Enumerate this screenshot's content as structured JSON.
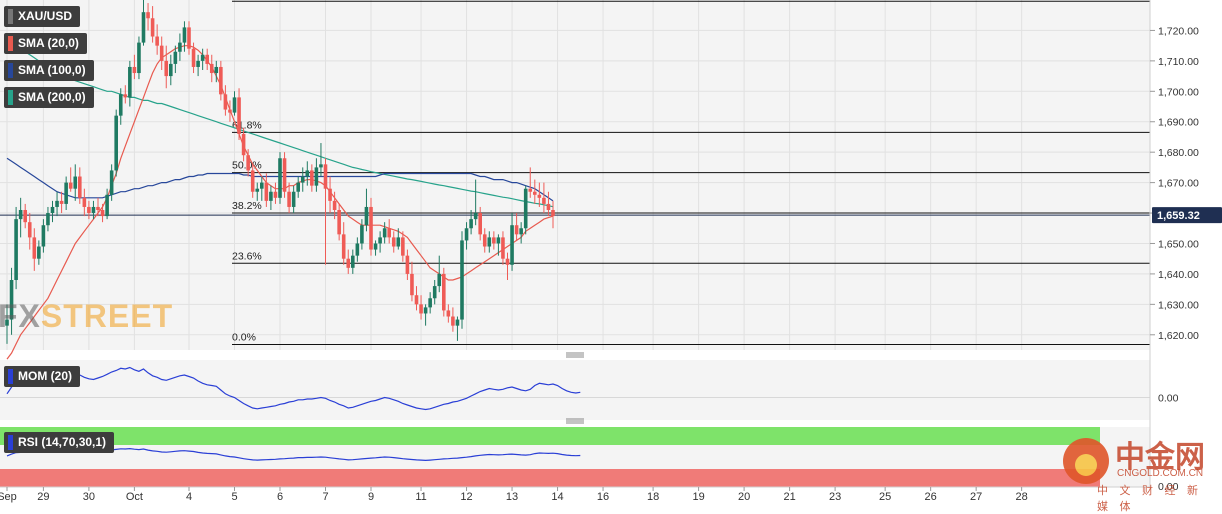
{
  "badges": {
    "symbol": "XAU/USD",
    "sma20": "SMA (20,0)",
    "sma100": "SMA (100,0)",
    "sma200": "SMA (200,0)",
    "mom": "MOM (20)",
    "rsi": "RSI (14,70,30,1)"
  },
  "colors": {
    "up": "#1f7a62",
    "down": "#ef5b56",
    "sma20": "#e85a4f",
    "sma100": "#27479a",
    "sma200": "#27a38b",
    "mom_line": "#2a3fd6",
    "rsi_upper_band": "#7ee36a",
    "rsi_lower_band": "#f07b78",
    "price_tag": "#1f2f52"
  },
  "watermark": {
    "fx": "FX",
    "street": "STREET"
  },
  "logo": {
    "cn": "中金网",
    "en": "CNGOLD.COM.CN",
    "sub": "中 文 财 经 新 媒 体"
  },
  "chart_data": {
    "type": "candlestick",
    "instrument": "XAU/USD",
    "price_axis": {
      "min": 1615,
      "max": 1730,
      "ticks": [
        1620,
        1630,
        1640,
        1650,
        1660,
        1670,
        1680,
        1690,
        1700,
        1710,
        1720
      ]
    },
    "tick_labels": {
      "1620": "1,620.00",
      "1630": "1,630.00",
      "1640": "1,640.00",
      "1650": "1,650.00",
      "1660": "1,660.00",
      "1670": "1,670.00",
      "1680": "1,680.00",
      "1690": "1,690.00",
      "1700": "1,700.00",
      "1710": "1,710.00",
      "1720": "1,720.00"
    },
    "last_price": 1659.32,
    "last_price_label": "1,659.32",
    "x_axis_labels": [
      "Sep",
      "29",
      "30",
      "Oct",
      "4",
      "5",
      "6",
      "7",
      "9",
      "11",
      "12",
      "13",
      "14",
      "16",
      "18",
      "19",
      "20",
      "21",
      "23",
      "25",
      "26",
      "27",
      "28"
    ],
    "x_axis_bar_index": [
      0,
      8,
      18,
      28,
      40,
      50,
      60,
      70,
      80,
      91,
      101,
      111,
      121,
      131,
      142,
      152,
      162,
      172,
      182,
      193,
      203,
      213,
      223
    ],
    "fibonacci": [
      {
        "label": "61.8%",
        "price": 1686.5
      },
      {
        "label": "50.0%",
        "price": 1673.3
      },
      {
        "label": "38.2%",
        "price": 1660.0
      },
      {
        "label": "23.6%",
        "price": 1643.5
      },
      {
        "label": "0.0%",
        "price": 1616.8
      }
    ],
    "fib_top": 1729.6,
    "mom_axis": {
      "min": -30,
      "max": 50,
      "ticks": [
        0
      ],
      "tick_label": "0.00"
    },
    "rsi_axis": {
      "min": 0,
      "max": 100,
      "ticks": [
        0
      ],
      "tick_label": "0.00",
      "upper": 70,
      "lower": 30
    },
    "candles": [
      [
        1623,
        1630,
        1617,
        1625
      ],
      [
        1625,
        1642,
        1620,
        1638
      ],
      [
        1638,
        1662,
        1635,
        1658
      ],
      [
        1658,
        1665,
        1652,
        1661
      ],
      [
        1661,
        1663,
        1655,
        1657
      ],
      [
        1657,
        1660,
        1648,
        1652
      ],
      [
        1652,
        1655,
        1641,
        1645
      ],
      [
        1645,
        1651,
        1643,
        1649
      ],
      [
        1649,
        1658,
        1647,
        1656
      ],
      [
        1656,
        1662,
        1654,
        1660
      ],
      [
        1660,
        1664,
        1657,
        1662
      ],
      [
        1662,
        1667,
        1659,
        1664
      ],
      [
        1664,
        1667,
        1660,
        1663
      ],
      [
        1663,
        1672,
        1661,
        1670
      ],
      [
        1670,
        1675,
        1667,
        1668
      ],
      [
        1668,
        1676,
        1664,
        1672
      ],
      [
        1672,
        1675,
        1663,
        1665
      ],
      [
        1665,
        1668,
        1659,
        1662
      ],
      [
        1662,
        1664,
        1658,
        1660
      ],
      [
        1660,
        1664,
        1658,
        1662
      ],
      [
        1662,
        1665,
        1659,
        1661
      ],
      [
        1661,
        1663,
        1657,
        1659
      ],
      [
        1659,
        1668,
        1658,
        1666
      ],
      [
        1666,
        1676,
        1664,
        1674
      ],
      [
        1674,
        1694,
        1672,
        1692
      ],
      [
        1692,
        1701,
        1689,
        1699
      ],
      [
        1699,
        1702,
        1696,
        1698
      ],
      [
        1698,
        1710,
        1695,
        1708
      ],
      [
        1708,
        1712,
        1704,
        1706
      ],
      [
        1706,
        1718,
        1704,
        1716
      ],
      [
        1716,
        1730,
        1715,
        1726
      ],
      [
        1726,
        1729,
        1720,
        1724
      ],
      [
        1724,
        1728,
        1716,
        1718
      ],
      [
        1718,
        1722,
        1712,
        1715
      ],
      [
        1715,
        1718,
        1707,
        1710
      ],
      [
        1710,
        1715,
        1701,
        1705
      ],
      [
        1705,
        1712,
        1702,
        1709
      ],
      [
        1709,
        1715,
        1706,
        1713
      ],
      [
        1713,
        1719,
        1710,
        1716
      ],
      [
        1716,
        1723,
        1713,
        1721
      ],
      [
        1721,
        1723,
        1712,
        1714
      ],
      [
        1714,
        1716,
        1706,
        1708
      ],
      [
        1708,
        1712,
        1705,
        1710
      ],
      [
        1710,
        1714,
        1707,
        1712
      ],
      [
        1712,
        1714,
        1707,
        1709
      ],
      [
        1709,
        1712,
        1703,
        1706
      ],
      [
        1706,
        1710,
        1703,
        1708
      ],
      [
        1708,
        1710,
        1697,
        1699
      ],
      [
        1699,
        1702,
        1692,
        1694
      ],
      [
        1694,
        1697,
        1690,
        1693
      ],
      [
        1693,
        1700,
        1692,
        1698
      ],
      [
        1698,
        1701,
        1684,
        1686
      ],
      [
        1686,
        1688,
        1677,
        1679
      ],
      [
        1679,
        1681,
        1672,
        1674
      ],
      [
        1674,
        1676,
        1665,
        1667
      ],
      [
        1667,
        1670,
        1664,
        1668
      ],
      [
        1668,
        1672,
        1664,
        1670
      ],
      [
        1670,
        1673,
        1662,
        1664
      ],
      [
        1664,
        1669,
        1661,
        1667
      ],
      [
        1667,
        1670,
        1663,
        1665
      ],
      [
        1665,
        1680,
        1663,
        1678
      ],
      [
        1678,
        1680,
        1665,
        1667
      ],
      [
        1667,
        1670,
        1660,
        1662
      ],
      [
        1662,
        1669,
        1660,
        1667
      ],
      [
        1667,
        1672,
        1665,
        1670
      ],
      [
        1670,
        1675,
        1667,
        1672
      ],
      [
        1672,
        1677,
        1669,
        1674
      ],
      [
        1674,
        1676,
        1667,
        1669
      ],
      [
        1669,
        1678,
        1667,
        1675
      ],
      [
        1675,
        1683,
        1672,
        1676
      ],
      [
        1676,
        1678,
        1643,
        1668
      ],
      [
        1668,
        1672,
        1660,
        1664
      ],
      [
        1664,
        1667,
        1658,
        1661
      ],
      [
        1661,
        1663,
        1651,
        1653
      ],
      [
        1653,
        1657,
        1643,
        1645
      ],
      [
        1645,
        1648,
        1640,
        1642
      ],
      [
        1642,
        1648,
        1640,
        1646
      ],
      [
        1646,
        1652,
        1644,
        1650
      ],
      [
        1650,
        1658,
        1648,
        1656
      ],
      [
        1656,
        1668,
        1654,
        1662
      ],
      [
        1662,
        1665,
        1646,
        1648
      ],
      [
        1648,
        1651,
        1646,
        1650
      ],
      [
        1650,
        1654,
        1647,
        1652
      ],
      [
        1652,
        1657,
        1650,
        1655
      ],
      [
        1655,
        1658,
        1650,
        1652
      ],
      [
        1652,
        1654,
        1647,
        1649
      ],
      [
        1649,
        1655,
        1648,
        1652
      ],
      [
        1652,
        1654,
        1644,
        1646
      ],
      [
        1646,
        1648,
        1638,
        1640
      ],
      [
        1640,
        1644,
        1631,
        1633
      ],
      [
        1633,
        1636,
        1628,
        1630
      ],
      [
        1630,
        1633,
        1625,
        1627
      ],
      [
        1627,
        1630,
        1623,
        1629
      ],
      [
        1629,
        1634,
        1627,
        1632
      ],
      [
        1632,
        1638,
        1630,
        1636
      ],
      [
        1636,
        1646,
        1634,
        1640
      ],
      [
        1640,
        1642,
        1626,
        1628
      ],
      [
        1628,
        1630,
        1624,
        1626
      ],
      [
        1626,
        1629,
        1621,
        1623
      ],
      [
        1623,
        1626,
        1618,
        1625
      ],
      [
        1625,
        1654,
        1622,
        1651
      ],
      [
        1651,
        1657,
        1648,
        1655
      ],
      [
        1655,
        1661,
        1653,
        1658
      ],
      [
        1658,
        1671,
        1656,
        1660
      ],
      [
        1660,
        1662,
        1651,
        1653
      ],
      [
        1653,
        1655,
        1647,
        1649
      ],
      [
        1649,
        1654,
        1647,
        1652
      ],
      [
        1652,
        1654,
        1648,
        1650
      ],
      [
        1650,
        1653,
        1646,
        1652
      ],
      [
        1652,
        1654,
        1643,
        1645
      ],
      [
        1645,
        1647,
        1638,
        1643
      ],
      [
        1643,
        1660,
        1641,
        1656
      ],
      [
        1656,
        1660,
        1651,
        1653
      ],
      [
        1653,
        1657,
        1650,
        1655
      ],
      [
        1655,
        1669,
        1653,
        1668
      ],
      [
        1668,
        1675,
        1665,
        1667
      ],
      [
        1667,
        1671,
        1663,
        1666
      ],
      [
        1666,
        1670,
        1662,
        1665
      ],
      [
        1665,
        1670,
        1660,
        1663
      ],
      [
        1663,
        1667,
        1659,
        1661
      ],
      [
        1661,
        1664,
        1655,
        1659
      ]
    ],
    "sma20": [
      1612,
      1614,
      1617,
      1620,
      1622,
      1624,
      1626,
      1628,
      1630,
      1632,
      1635,
      1638,
      1641,
      1644,
      1647,
      1650,
      1652,
      1654,
      1656,
      1658,
      1660,
      1662,
      1665,
      1669,
      1673,
      1678,
      1682,
      1686,
      1690,
      1694,
      1698,
      1702,
      1706,
      1709,
      1711,
      1712,
      1713,
      1714,
      1714.5,
      1715,
      1715,
      1714.5,
      1713.5,
      1712,
      1710,
      1708,
      1705,
      1702,
      1698,
      1694,
      1690,
      1686,
      1682,
      1679,
      1676,
      1674,
      1672,
      1670,
      1669,
      1668,
      1668,
      1668,
      1669,
      1669,
      1670,
      1670.5,
      1671,
      1671,
      1670.5,
      1670,
      1669,
      1667,
      1665,
      1663,
      1661,
      1659,
      1658,
      1657,
      1656,
      1656,
      1656,
      1656,
      1656,
      1655.5,
      1655,
      1654.5,
      1654,
      1653,
      1652,
      1650,
      1648,
      1646,
      1644,
      1642,
      1641,
      1640,
      1639,
      1638,
      1638,
      1638.5,
      1639,
      1640,
      1641,
      1642,
      1643,
      1644,
      1645,
      1646,
      1647,
      1648,
      1649,
      1650,
      1651,
      1652,
      1654,
      1655,
      1656,
      1657,
      1658,
      1658.5,
      1659
    ],
    "sma100": [
      1678,
      1677,
      1676,
      1675,
      1674,
      1673,
      1672,
      1671,
      1670,
      1669,
      1668,
      1667,
      1666.5,
      1666,
      1665.5,
      1665,
      1665,
      1665,
      1665,
      1665,
      1665,
      1665,
      1665.5,
      1666,
      1666.5,
      1667,
      1667,
      1667.5,
      1668,
      1668,
      1668.5,
      1669,
      1669,
      1669.5,
      1670,
      1670,
      1670.5,
      1671,
      1671,
      1671.5,
      1672,
      1672,
      1672.5,
      1672.5,
      1673,
      1673,
      1673,
      1673,
      1673,
      1673,
      1673,
      1673,
      1672.5,
      1672.5,
      1672,
      1672,
      1672,
      1672,
      1672,
      1672,
      1672,
      1672,
      1672,
      1672,
      1672,
      1672,
      1672,
      1672,
      1672,
      1672,
      1672,
      1672,
      1672,
      1672,
      1672,
      1672,
      1672,
      1672,
      1672,
      1672,
      1672,
      1672,
      1672.5,
      1673,
      1673,
      1673,
      1673,
      1673,
      1673,
      1673,
      1673,
      1673,
      1673,
      1673,
      1673,
      1673,
      1673,
      1673,
      1673,
      1673,
      1673,
      1673,
      1673,
      1672.5,
      1672,
      1672,
      1671.5,
      1671,
      1671,
      1671,
      1670.5,
      1670,
      1670,
      1669.5,
      1669,
      1668.5,
      1668,
      1667,
      1666,
      1665,
      1664
    ],
    "sma200": [
      1717,
      1716,
      1715,
      1714,
      1713,
      1712,
      1711,
      1710,
      1709,
      1708,
      1707,
      1706,
      1705,
      1704.5,
      1704,
      1703.5,
      1703,
      1702.5,
      1702,
      1701.5,
      1701,
      1700.5,
      1700,
      1700,
      1699.5,
      1699,
      1698.5,
      1698,
      1698,
      1697.5,
      1697,
      1697,
      1696.5,
      1696,
      1696,
      1695.5,
      1695,
      1694.5,
      1694,
      1693.5,
      1693,
      1692.5,
      1692,
      1691.5,
      1691,
      1690.5,
      1690,
      1689.5,
      1689,
      1688.5,
      1688,
      1687.5,
      1687,
      1686.5,
      1686,
      1685.5,
      1685,
      1684.5,
      1684,
      1683.5,
      1683,
      1682.5,
      1682,
      1681.5,
      1681,
      1680.5,
      1680,
      1679.5,
      1679,
      1678.5,
      1678,
      1677.5,
      1677,
      1676.5,
      1676,
      1675.5,
      1675,
      1674.7,
      1674.3,
      1674,
      1673.6,
      1673.3,
      1673,
      1672.7,
      1672.4,
      1672.1,
      1671.8,
      1671.5,
      1671.2,
      1671,
      1670.7,
      1670.4,
      1670.1,
      1669.8,
      1669.5,
      1669.2,
      1669,
      1668.7,
      1668.4,
      1668.1,
      1667.8,
      1667.5,
      1667.2,
      1667,
      1666.7,
      1666.4,
      1666.1,
      1665.8,
      1665.5,
      1665.2,
      1665,
      1664.7,
      1664.4,
      1664.1,
      1663.8,
      1663.5,
      1663.2,
      1663,
      1662.7,
      1662.4,
      1662.1
    ],
    "mom": [
      5,
      14,
      21,
      22,
      23,
      25,
      27,
      26,
      28,
      29,
      30,
      30,
      31,
      30,
      29,
      28,
      30,
      27,
      25,
      24,
      26,
      28,
      31,
      34,
      36,
      39,
      38,
      40,
      37,
      35,
      38,
      33,
      29,
      27,
      24,
      23,
      25,
      27,
      29,
      30,
      28,
      26,
      22,
      19,
      17,
      16,
      15,
      10,
      5,
      2,
      0,
      -4,
      -8,
      -11,
      -14,
      -15,
      -14,
      -13,
      -12,
      -11,
      -9,
      -8,
      -6,
      -5,
      -3,
      -3,
      -2,
      -2,
      -1,
      0,
      -1,
      -4,
      -6,
      -9,
      -11,
      -14,
      -13,
      -11,
      -9,
      -7,
      -5,
      -4,
      -2,
      0,
      -1,
      -3,
      -5,
      -8,
      -10,
      -12,
      -14,
      -15,
      -16,
      -15,
      -13,
      -11,
      -9,
      -8,
      -6,
      -5,
      -3,
      -1,
      2,
      5,
      8,
      10,
      12,
      11,
      10,
      11,
      13,
      14,
      12,
      10,
      9,
      11,
      16,
      19,
      18,
      17,
      18,
      16,
      12,
      9,
      7,
      6,
      7
    ]
  }
}
